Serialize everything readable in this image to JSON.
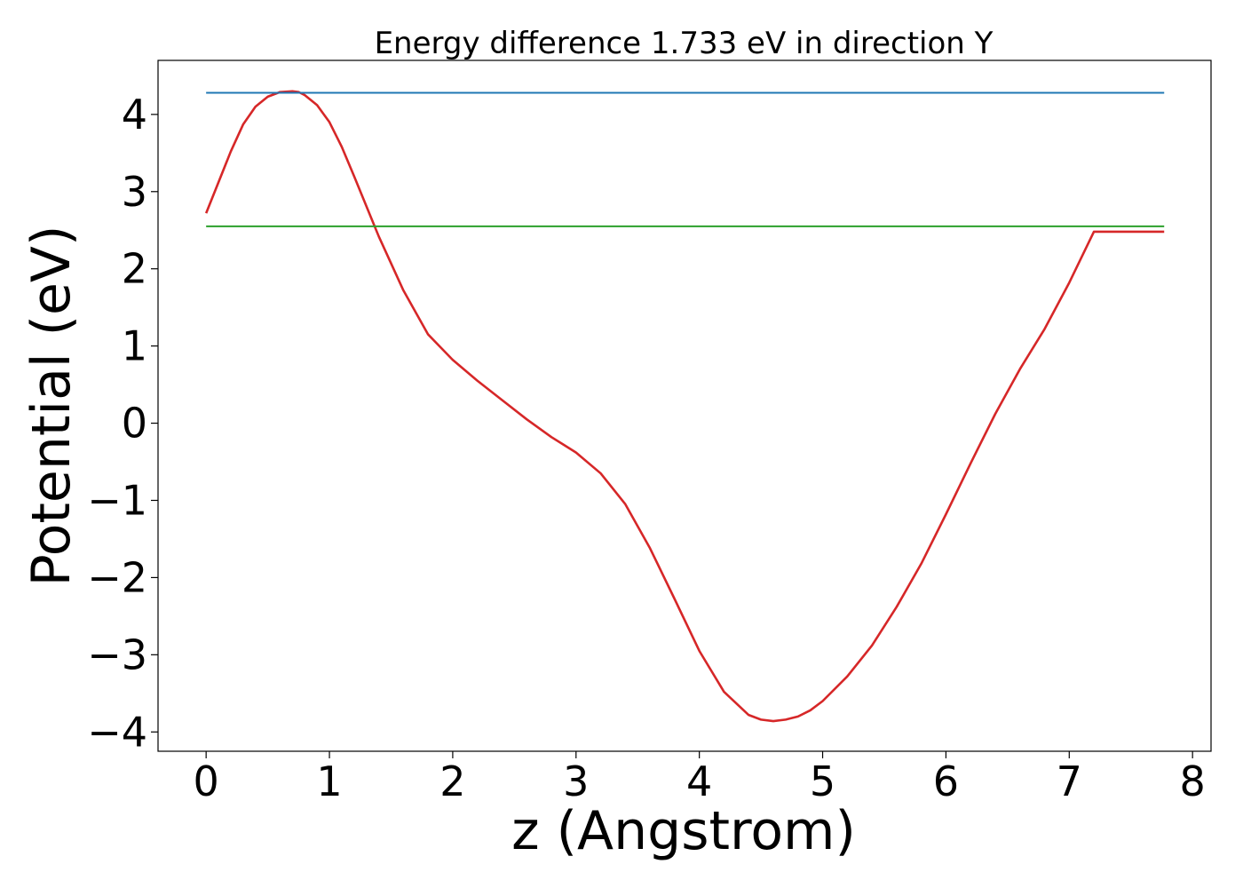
{
  "chart_data": {
    "type": "line",
    "title": "Energy difference 1.733 eV in direction Y",
    "xlabel": "z (Angstrom)",
    "ylabel": "Potential (eV)",
    "xlim": [
      -0.39,
      8.15
    ],
    "ylim": [
      -4.25,
      4.7
    ],
    "xticks": [
      0,
      1,
      2,
      3,
      4,
      5,
      6,
      7,
      8
    ],
    "yticks": [
      -4,
      -3,
      -2,
      -1,
      0,
      1,
      2,
      3,
      4
    ],
    "xtick_labels": [
      "0",
      "1",
      "2",
      "3",
      "4",
      "5",
      "6",
      "7",
      "8"
    ],
    "ytick_labels": [
      "−4",
      "−3",
      "−2",
      "−1",
      "0",
      "1",
      "2",
      "3",
      "4"
    ],
    "grid": false,
    "series": [
      {
        "color": "#d62728",
        "x": [
          0.0,
          0.1,
          0.2,
          0.3,
          0.4,
          0.5,
          0.6,
          0.7,
          0.75,
          0.8,
          0.9,
          1.0,
          1.1,
          1.2,
          1.4,
          1.6,
          1.8,
          2.0,
          2.2,
          2.4,
          2.6,
          2.8,
          3.0,
          3.2,
          3.4,
          3.6,
          3.8,
          4.0,
          4.2,
          4.4,
          4.5,
          4.6,
          4.7,
          4.8,
          4.9,
          5.0,
          5.2,
          5.4,
          5.6,
          5.8,
          6.0,
          6.2,
          6.4,
          6.6,
          6.8,
          7.0,
          7.2,
          7.4,
          7.6,
          7.77
        ],
        "y": [
          2.72,
          3.12,
          3.52,
          3.87,
          4.1,
          4.23,
          4.29,
          4.3,
          4.29,
          4.25,
          4.12,
          3.9,
          3.58,
          3.2,
          2.42,
          1.72,
          1.15,
          0.82,
          0.55,
          0.3,
          0.05,
          -0.18,
          -0.38,
          -0.65,
          -1.05,
          -1.62,
          -2.28,
          -2.95,
          -3.48,
          -3.78,
          -3.84,
          -3.86,
          -3.84,
          -3.8,
          -3.72,
          -3.6,
          -3.28,
          -2.88,
          -2.38,
          -1.82,
          -1.18,
          -0.52,
          0.12,
          0.7,
          1.22,
          1.82,
          2.48,
          2.48,
          2.48,
          2.48
        ]
      },
      {
        "color": "#1f77b4",
        "x": [
          0.0,
          7.77
        ],
        "y": [
          4.28,
          4.28
        ]
      },
      {
        "color": "#2ca02c",
        "x": [
          0.0,
          7.77
        ],
        "y": [
          2.55,
          2.55
        ]
      }
    ]
  }
}
